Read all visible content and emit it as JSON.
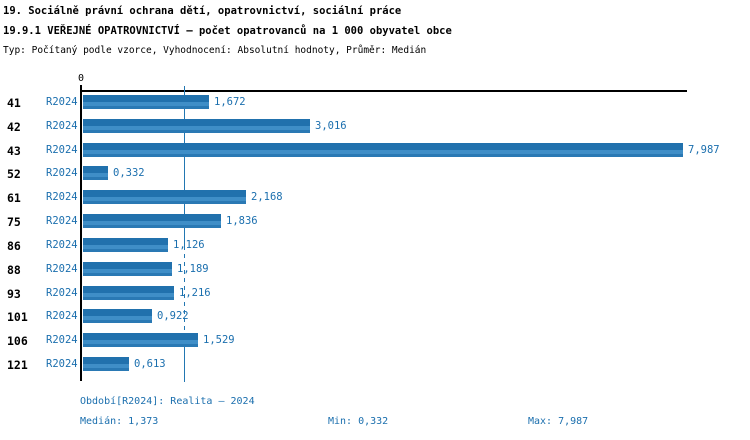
{
  "header": {
    "title": "19. Sociálně právní ochrana dětí, opatrovnictví, sociální práce",
    "subtitle": "19.9.1 VEŘEJNÉ OPATROVNICTVÍ – počet opatrovanců na 1 000 obyvatel obce",
    "meta": "Typ: Počítaný podle vzorce, Vyhodnocení: Absolutní hodnoty, Průměr: Medián"
  },
  "chart_data": {
    "type": "bar",
    "orientation": "horizontal",
    "title": "19.9.1 VEŘEJNÉ OPATROVNICTVÍ – počet opatrovanců na 1 000 obyvatel obce",
    "categories": [
      "41",
      "42",
      "43",
      "52",
      "61",
      "75",
      "86",
      "88",
      "93",
      "101",
      "106",
      "121"
    ],
    "series": [
      {
        "name": "R2024",
        "values": [
          1.672,
          3.016,
          7.987,
          0.332,
          2.168,
          1.836,
          1.126,
          1.189,
          1.216,
          0.922,
          1.529,
          0.613
        ],
        "value_labels": [
          "1,672",
          "3,016",
          "7,987",
          "0,332",
          "2,168",
          "1,836",
          "1,126",
          "1,189",
          "1,216",
          "0,922",
          "1,529",
          "0,613"
        ]
      }
    ],
    "xlim": [
      0,
      8.04
    ],
    "x_axis": {
      "zero_label": "0"
    },
    "median_value": 1.373,
    "grid": false,
    "legend_position": "none",
    "bar_color": "#2277b2",
    "accent_text_color": "#1b6fae"
  },
  "footer": {
    "period_line": "Období[R2024]: Realita – 2024",
    "median": "Medián: 1,373",
    "min": "Min: 0,332",
    "max": "Max: 7,987"
  }
}
